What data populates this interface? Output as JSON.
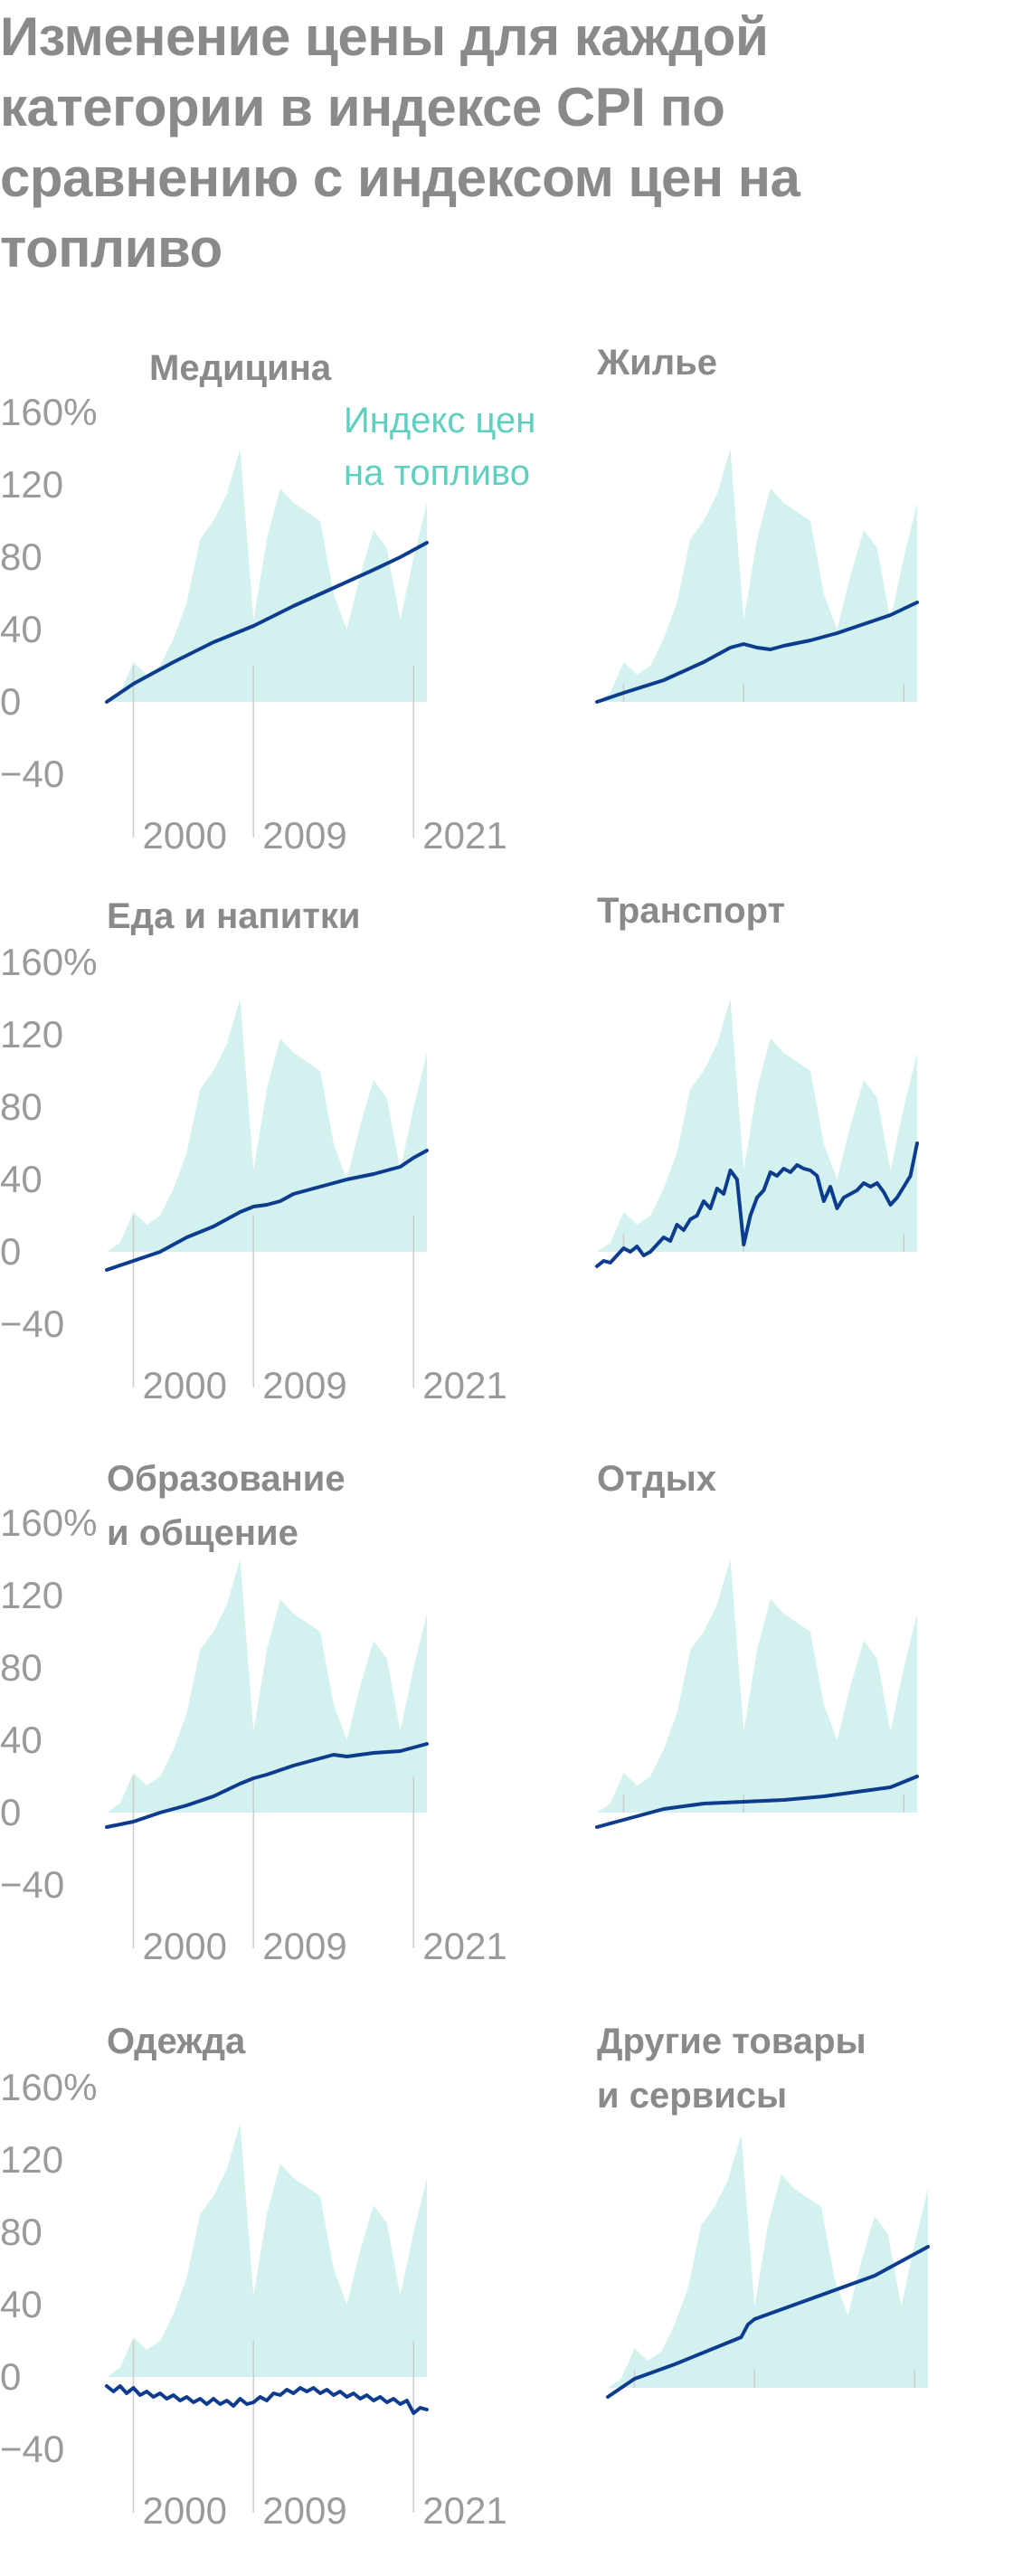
{
  "title": "Изменение цены для каждой категории в индексе CPI по сравнению с индексом цен на топливо",
  "colors": {
    "fuel_area": "#d3f1ee",
    "category_line": "#0d3c8f",
    "grid": "#cccccc",
    "text": "#8a8a8a",
    "legend": "#5fd0c0"
  },
  "legend": {
    "line1": "Индекс цен",
    "line2": "на топливо"
  },
  "chart_data": [
    {
      "type": "area",
      "title_lines": [
        "Медицина"
      ],
      "xticks": [
        "2000",
        "2009",
        "2021"
      ],
      "yticks": [
        "160%",
        "120",
        "80",
        "40",
        "0",
        "−40"
      ],
      "ylim": [
        -40,
        160
      ],
      "x_range": [
        1998,
        2022
      ],
      "fuel_index": {
        "name": "Индекс цен на топливо",
        "x": [
          1998,
          1999,
          2000,
          2001,
          2002,
          2003,
          2004,
          2005,
          2006,
          2007,
          2008,
          2009,
          2010,
          2011,
          2012,
          2013,
          2014,
          2015,
          2016,
          2017,
          2018,
          2019,
          2020,
          2021,
          2022
        ],
        "y": [
          0,
          5,
          22,
          15,
          20,
          35,
          55,
          90,
          100,
          115,
          140,
          45,
          90,
          118,
          110,
          105,
          100,
          60,
          40,
          70,
          95,
          85,
          45,
          80,
          110
        ]
      },
      "series": [
        {
          "x": [
            1998,
            2000,
            2003,
            2006,
            2009,
            2012,
            2015,
            2018,
            2020,
            2022
          ],
          "y": [
            0,
            10,
            22,
            33,
            42,
            53,
            63,
            73,
            80,
            88
          ]
        }
      ]
    },
    {
      "type": "area",
      "title_lines": [
        "Жилье"
      ],
      "xticks": [],
      "yticks": [],
      "ylim": [
        -40,
        160
      ],
      "x_range": [
        1998,
        2022
      ],
      "fuel_index": {
        "name": "Индекс цен на топливо",
        "x": [
          1998,
          1999,
          2000,
          2001,
          2002,
          2003,
          2004,
          2005,
          2006,
          2007,
          2008,
          2009,
          2010,
          2011,
          2012,
          2013,
          2014,
          2015,
          2016,
          2017,
          2018,
          2019,
          2020,
          2021,
          2022
        ],
        "y": [
          0,
          5,
          22,
          15,
          20,
          35,
          55,
          90,
          100,
          115,
          140,
          45,
          90,
          118,
          110,
          105,
          100,
          60,
          40,
          70,
          95,
          85,
          45,
          80,
          110
        ]
      },
      "series": [
        {
          "x": [
            1998,
            2000,
            2003,
            2006,
            2008,
            2009,
            2010,
            2011,
            2012,
            2014,
            2016,
            2018,
            2020,
            2022
          ],
          "y": [
            0,
            5,
            12,
            22,
            30,
            32,
            30,
            29,
            31,
            34,
            38,
            43,
            48,
            55
          ]
        }
      ]
    },
    {
      "type": "area",
      "title_lines": [
        "Еда и напитки"
      ],
      "xticks": [
        "2000",
        "2009",
        "2021"
      ],
      "yticks": [
        "160%",
        "120",
        "80",
        "40",
        "0",
        "−40"
      ],
      "ylim": [
        -40,
        160
      ],
      "x_range": [
        1998,
        2022
      ],
      "fuel_index": {
        "name": "Индекс цен на топливо",
        "x": [
          1998,
          1999,
          2000,
          2001,
          2002,
          2003,
          2004,
          2005,
          2006,
          2007,
          2008,
          2009,
          2010,
          2011,
          2012,
          2013,
          2014,
          2015,
          2016,
          2017,
          2018,
          2019,
          2020,
          2021,
          2022
        ],
        "y": [
          0,
          5,
          22,
          15,
          20,
          35,
          55,
          90,
          100,
          115,
          140,
          45,
          90,
          118,
          110,
          105,
          100,
          60,
          40,
          70,
          95,
          85,
          45,
          80,
          110
        ]
      },
      "series": [
        {
          "x": [
            1998,
            2000,
            2002,
            2004,
            2006,
            2008,
            2009,
            2010,
            2011,
            2012,
            2014,
            2016,
            2018,
            2020,
            2021,
            2022
          ],
          "y": [
            -10,
            -5,
            0,
            8,
            14,
            22,
            25,
            26,
            28,
            32,
            36,
            40,
            43,
            47,
            52,
            56
          ]
        }
      ]
    },
    {
      "type": "area",
      "title_lines": [
        "Транспорт"
      ],
      "xticks": [],
      "yticks": [],
      "ylim": [
        -40,
        160
      ],
      "x_range": [
        1998,
        2022
      ],
      "fuel_index": {
        "name": "Индекс цен на топливо",
        "x": [
          1998,
          1999,
          2000,
          2001,
          2002,
          2003,
          2004,
          2005,
          2006,
          2007,
          2008,
          2009,
          2010,
          2011,
          2012,
          2013,
          2014,
          2015,
          2016,
          2017,
          2018,
          2019,
          2020,
          2021,
          2022
        ],
        "y": [
          0,
          5,
          22,
          15,
          20,
          35,
          55,
          90,
          100,
          115,
          140,
          45,
          90,
          118,
          110,
          105,
          100,
          60,
          40,
          70,
          95,
          85,
          45,
          80,
          110
        ]
      },
      "series": [
        {
          "x": [
            1998,
            1998.5,
            1999,
            1999.5,
            2000,
            2000.5,
            2001,
            2001.5,
            2002,
            2002.5,
            2003,
            2003.5,
            2004,
            2004.5,
            2005,
            2005.5,
            2006,
            2006.5,
            2007,
            2007.5,
            2008,
            2008.5,
            2009,
            2009.5,
            2010,
            2010.5,
            2011,
            2011.5,
            2012,
            2012.5,
            2013,
            2013.5,
            2014,
            2014.5,
            2015,
            2015.5,
            2016,
            2016.5,
            2017,
            2017.5,
            2018,
            2018.5,
            2019,
            2019.5,
            2020,
            2020.5,
            2021,
            2021.5,
            2022
          ],
          "y": [
            -8,
            -5,
            -6,
            -2,
            2,
            0,
            3,
            -2,
            0,
            4,
            8,
            6,
            15,
            12,
            18,
            20,
            28,
            24,
            35,
            32,
            45,
            40,
            4,
            20,
            30,
            34,
            44,
            42,
            46,
            44,
            48,
            46,
            45,
            42,
            28,
            36,
            24,
            30,
            32,
            34,
            38,
            36,
            38,
            33,
            26,
            30,
            36,
            42,
            60
          ]
        }
      ]
    },
    {
      "type": "area",
      "title_lines": [
        "Образование",
        "и общение"
      ],
      "xticks": [
        "2000",
        "2009",
        "2021"
      ],
      "yticks": [
        "160%",
        "120",
        "80",
        "40",
        "0",
        "−40"
      ],
      "ylim": [
        -40,
        160
      ],
      "x_range": [
        1998,
        2022
      ],
      "fuel_index": {
        "name": "Индекс цен на топливо",
        "x": [
          1998,
          1999,
          2000,
          2001,
          2002,
          2003,
          2004,
          2005,
          2006,
          2007,
          2008,
          2009,
          2010,
          2011,
          2012,
          2013,
          2014,
          2015,
          2016,
          2017,
          2018,
          2019,
          2020,
          2021,
          2022
        ],
        "y": [
          0,
          5,
          22,
          15,
          20,
          35,
          55,
          90,
          100,
          115,
          140,
          45,
          90,
          118,
          110,
          105,
          100,
          60,
          40,
          70,
          95,
          85,
          45,
          80,
          110
        ]
      },
      "series": [
        {
          "x": [
            1998,
            2000,
            2002,
            2004,
            2006,
            2008,
            2009,
            2010,
            2012,
            2014,
            2015,
            2016,
            2018,
            2020,
            2021,
            2022
          ],
          "y": [
            -8,
            -5,
            0,
            4,
            9,
            16,
            19,
            21,
            26,
            30,
            32,
            31,
            33,
            34,
            36,
            38
          ]
        }
      ]
    },
    {
      "type": "area",
      "title_lines": [
        "Отдых"
      ],
      "xticks": [],
      "yticks": [],
      "ylim": [
        -40,
        160
      ],
      "x_range": [
        1998,
        2022
      ],
      "fuel_index": {
        "name": "Индекс цен на топливо",
        "x": [
          1998,
          1999,
          2000,
          2001,
          2002,
          2003,
          2004,
          2005,
          2006,
          2007,
          2008,
          2009,
          2010,
          2011,
          2012,
          2013,
          2014,
          2015,
          2016,
          2017,
          2018,
          2019,
          2020,
          2021,
          2022
        ],
        "y": [
          0,
          5,
          22,
          15,
          20,
          35,
          55,
          90,
          100,
          115,
          140,
          45,
          90,
          118,
          110,
          105,
          100,
          60,
          40,
          70,
          95,
          85,
          45,
          80,
          110
        ]
      },
      "series": [
        {
          "x": [
            1998,
            2000,
            2003,
            2006,
            2009,
            2012,
            2015,
            2018,
            2020,
            2022
          ],
          "y": [
            -8,
            -4,
            2,
            5,
            6,
            7,
            9,
            12,
            14,
            20
          ]
        }
      ]
    },
    {
      "type": "area",
      "title_lines": [
        "Одежда"
      ],
      "xticks": [
        "2000",
        "2009",
        "2021"
      ],
      "yticks": [
        "160%",
        "120",
        "80",
        "40",
        "0",
        "−40"
      ],
      "ylim": [
        -40,
        160
      ],
      "x_range": [
        1998,
        2022
      ],
      "fuel_index": {
        "name": "Индекс цен на топливо",
        "x": [
          1998,
          1999,
          2000,
          2001,
          2002,
          2003,
          2004,
          2005,
          2006,
          2007,
          2008,
          2009,
          2010,
          2011,
          2012,
          2013,
          2014,
          2015,
          2016,
          2017,
          2018,
          2019,
          2020,
          2021,
          2022
        ],
        "y": [
          0,
          5,
          22,
          15,
          20,
          35,
          55,
          90,
          100,
          115,
          140,
          45,
          90,
          118,
          110,
          105,
          100,
          60,
          40,
          70,
          95,
          85,
          45,
          80,
          110
        ]
      },
      "series": [
        {
          "x": [
            1998,
            1998.5,
            1999,
            1999.5,
            2000,
            2000.5,
            2001,
            2001.5,
            2002,
            2002.5,
            2003,
            2003.5,
            2004,
            2004.5,
            2005,
            2005.5,
            2006,
            2006.5,
            2007,
            2007.5,
            2008,
            2008.5,
            2009,
            2009.5,
            2010,
            2010.5,
            2011,
            2011.5,
            2012,
            2012.5,
            2013,
            2013.5,
            2014,
            2014.5,
            2015,
            2015.5,
            2016,
            2016.5,
            2017,
            2017.5,
            2018,
            2018.5,
            2019,
            2019.5,
            2020,
            2020.5,
            2021,
            2021.5,
            2022
          ],
          "y": [
            -5,
            -8,
            -5,
            -9,
            -6,
            -10,
            -8,
            -11,
            -9,
            -12,
            -10,
            -13,
            -11,
            -14,
            -12,
            -15,
            -12,
            -15,
            -13,
            -16,
            -12,
            -15,
            -14,
            -11,
            -13,
            -9,
            -10,
            -7,
            -9,
            -6,
            -8,
            -6,
            -9,
            -7,
            -10,
            -8,
            -11,
            -9,
            -12,
            -10,
            -13,
            -11,
            -14,
            -12,
            -15,
            -13,
            -20,
            -17,
            -18
          ]
        }
      ]
    },
    {
      "type": "area",
      "title_lines": [
        "Другие товары",
        "и сервисы"
      ],
      "xticks": [],
      "yticks": [],
      "ylim": [
        -40,
        160
      ],
      "x_range": [
        1998,
        2022
      ],
      "fuel_index": {
        "name": "Индекс цен на топливо",
        "x": [
          1998,
          1999,
          2000,
          2001,
          2002,
          2003,
          2004,
          2005,
          2006,
          2007,
          2008,
          2009,
          2010,
          2011,
          2012,
          2013,
          2014,
          2015,
          2016,
          2017,
          2018,
          2019,
          2020,
          2021,
          2022
        ],
        "y": [
          0,
          5,
          22,
          15,
          20,
          35,
          55,
          90,
          100,
          115,
          140,
          45,
          90,
          118,
          110,
          105,
          100,
          60,
          40,
          70,
          95,
          85,
          45,
          80,
          110
        ]
      },
      "series": [
        {
          "x": [
            1998,
            2000,
            2003,
            2006,
            2008,
            2008.5,
            2009,
            2012,
            2015,
            2018,
            2020,
            2022
          ],
          "y": [
            -5,
            5,
            13,
            22,
            28,
            35,
            38,
            46,
            54,
            62,
            70,
            78
          ]
        }
      ]
    }
  ]
}
